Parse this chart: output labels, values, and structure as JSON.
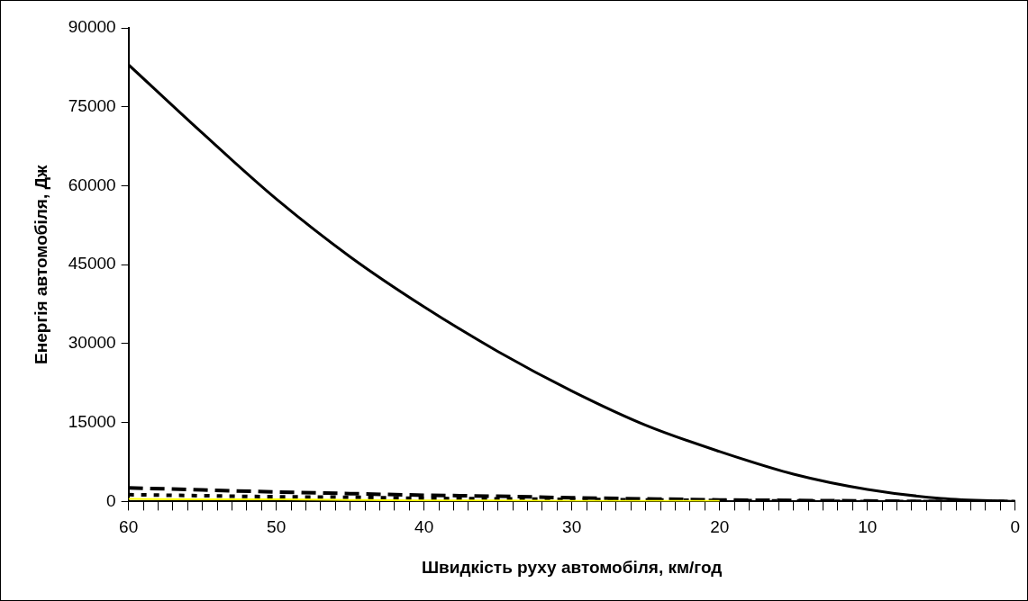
{
  "chart_data": {
    "type": "line",
    "xlabel": "Швидкість руху автомобіля, км/год",
    "ylabel": "Енергія автомобіля, Дж",
    "x": [
      60,
      55,
      50,
      45,
      40,
      35,
      30,
      25,
      20,
      15,
      10,
      5,
      0
    ],
    "series": [
      {
        "color": "#000000",
        "line_style": "solid",
        "values": [
          83000,
          70000,
          57500,
          46500,
          37000,
          28500,
          21000,
          14500,
          9500,
          5200,
          2300,
          600,
          0
        ]
      },
      {
        "color": "#000000",
        "line_style": "dashed",
        "values": [
          2600,
          2200,
          1800,
          1500,
          1200,
          1000,
          700,
          500,
          300,
          200,
          100,
          0,
          0
        ]
      },
      {
        "color": "#000000",
        "line_style": "dotted",
        "values": [
          1300,
          1100,
          900,
          800,
          600,
          500,
          400,
          300,
          200,
          100,
          0,
          0,
          0
        ]
      },
      {
        "color": "#ffff00",
        "line_style": "solid",
        "values": [
          500,
          400,
          400,
          300,
          200,
          200,
          100,
          100,
          100,
          null,
          null,
          null,
          null
        ]
      }
    ],
    "xlim": [
      60,
      0
    ],
    "ylim": [
      0,
      90000
    ],
    "yticks": [
      0,
      15000,
      30000,
      45000,
      60000,
      75000,
      90000
    ],
    "xticks": [
      60,
      {
        "value": 59,
        "label": null
      },
      {
        "value": 58,
        "label": null
      },
      {
        "value": 57,
        "label": null
      },
      {
        "value": 56,
        "label": null
      },
      {
        "value": 55,
        "label": null
      },
      {
        "value": 54,
        "label": null
      },
      {
        "value": 53,
        "label": null
      },
      {
        "value": 52,
        "label": null
      },
      {
        "value": 51,
        "label": null
      },
      50,
      {
        "value": 49,
        "label": null
      },
      {
        "value": 48,
        "label": null
      },
      {
        "value": 47,
        "label": null
      },
      {
        "value": 46,
        "label": null
      },
      {
        "value": 45,
        "label": null
      },
      {
        "value": 44,
        "label": null
      },
      {
        "value": 43,
        "label": null
      },
      {
        "value": 42,
        "label": null
      },
      {
        "value": 41,
        "label": null
      },
      40,
      {
        "value": 39,
        "label": null
      },
      {
        "value": 38,
        "label": null
      },
      {
        "value": 37,
        "label": null
      },
      {
        "value": 36,
        "label": null
      },
      {
        "value": 35,
        "label": null
      },
      {
        "value": 34,
        "label": null
      },
      {
        "value": 33,
        "label": null
      },
      {
        "value": 32,
        "label": null
      },
      {
        "value": 31,
        "label": null
      },
      30,
      {
        "value": 29,
        "label": null
      },
      {
        "value": 28,
        "label": null
      },
      {
        "value": 27,
        "label": null
      },
      {
        "value": 26,
        "label": null
      },
      {
        "value": 25,
        "label": null
      },
      {
        "value": 24,
        "label": null
      },
      {
        "value": 23,
        "label": null
      },
      {
        "value": 22,
        "label": null
      },
      {
        "value": 21,
        "label": null
      },
      20,
      {
        "value": 19,
        "label": null
      },
      {
        "value": 18,
        "label": null
      },
      {
        "value": 17,
        "label": null
      },
      {
        "value": 16,
        "label": null
      },
      {
        "value": 15,
        "label": null
      },
      {
        "value": 14,
        "label": null
      },
      {
        "value": 13,
        "label": null
      },
      {
        "value": 12,
        "label": null
      },
      {
        "value": 11,
        "label": null
      },
      10,
      {
        "value": 9,
        "label": null
      },
      {
        "value": 8,
        "label": null
      },
      {
        "value": 7,
        "label": null
      },
      {
        "value": 6,
        "label": null
      },
      {
        "value": 5,
        "label": null
      },
      {
        "value": 4,
        "label": null
      },
      {
        "value": 3,
        "label": null
      },
      {
        "value": 2,
        "label": null
      },
      {
        "value": 1,
        "label": null
      },
      0
    ],
    "grid": false,
    "legend": false,
    "marker": "none"
  }
}
